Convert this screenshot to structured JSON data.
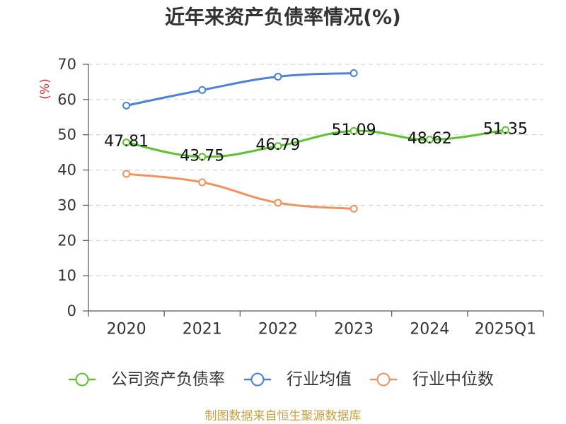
{
  "chart_data": {
    "type": "line",
    "title": "近年来资产负债率情况(%)",
    "ylabel": "(%)",
    "ylabel_color": "#d92c2c",
    "categories": [
      "2020",
      "2021",
      "2022",
      "2023",
      "2024",
      "2025Q1"
    ],
    "ylim": [
      0,
      70
    ],
    "yticks": [
      0,
      10,
      20,
      30,
      40,
      50,
      60,
      70
    ],
    "grid": true,
    "smooth": true,
    "legend_position": "bottom",
    "series": [
      {
        "name": "公司资产负债率",
        "color": "#5dc22f",
        "show_labels": true,
        "values": [
          47.81,
          43.75,
          46.79,
          51.09,
          48.62,
          51.35
        ]
      },
      {
        "name": "行业均值",
        "color": "#4d80d8",
        "show_labels": false,
        "values": [
          58.3,
          62.7,
          66.5,
          67.5,
          null,
          null
        ]
      },
      {
        "name": "行业中位数",
        "color": "#f3915e",
        "show_labels": false,
        "values": [
          38.9,
          36.5,
          30.7,
          29.0,
          null,
          null
        ]
      }
    ]
  },
  "source_note": "制图数据来自恒生聚源数据库",
  "source_note_color": "#c8a046"
}
